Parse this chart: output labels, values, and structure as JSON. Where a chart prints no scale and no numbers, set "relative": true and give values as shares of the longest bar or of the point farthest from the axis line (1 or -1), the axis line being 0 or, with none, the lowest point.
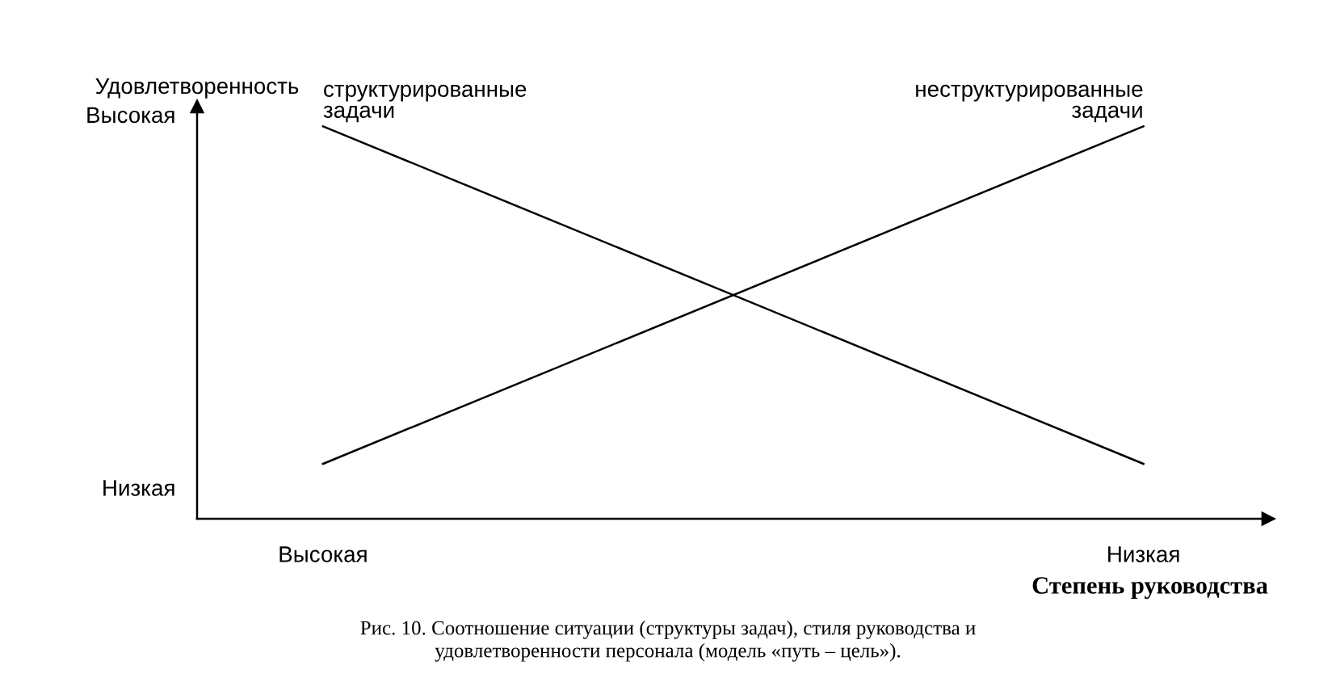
{
  "chart_data": {
    "type": "line",
    "relative": true,
    "categories": [
      "Высокая",
      "Низкая"
    ],
    "ylabel": "Удовлетворенность",
    "xlabel": "Степень руководства",
    "series": [
      {
        "name": "структурированные\nзадачи",
        "color": "#000000",
        "values": [
          1,
          0.14
        ]
      },
      {
        "name": "неструктурированные\nзадачи",
        "color": "#000000",
        "values": [
          0.14,
          1
        ]
      }
    ],
    "annotations": [
      "Высокая",
      "Низкая",
      "Рис. 10. Соотношение ситуации (структуры задач), стиля руководства и\nудовлетворенности персонала (модель «путь – цель»)."
    ],
    "grid": false,
    "legend": false,
    "marker": "none",
    "line_style": "solid"
  }
}
